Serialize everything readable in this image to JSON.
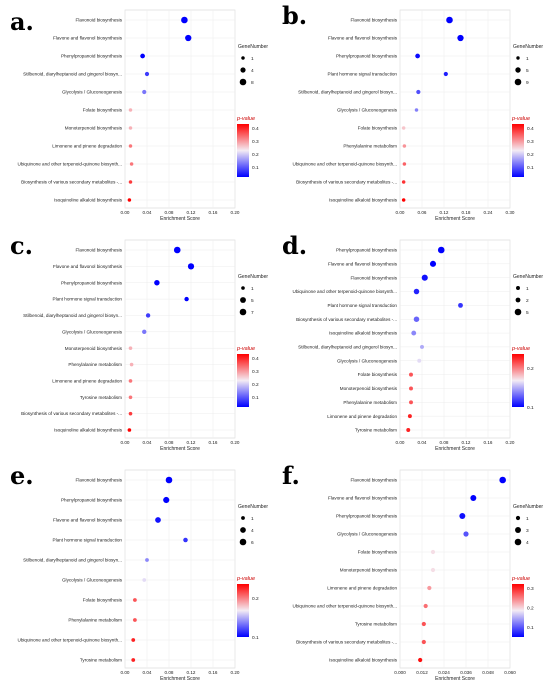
{
  "chart_data": [
    {
      "type": "scatter",
      "panel_label": "a.",
      "categories": [
        "Flavonoid biosynthesis",
        "Flavone and flavonol biosynthesis",
        "Phenylpropanoid biosynthesis",
        "Stilbenoid, diarylheptanoid and gingerol biosyn...",
        "Glycolysis / Gluconeogenesis",
        "Folate biosynthesis",
        "Monoterpenoid biosynthesis",
        "Limonene and pinene degradation",
        "Ubiquinone and other terpenoid-quinone biosynth...",
        "Biosynthesis of various secondary metabolites -...",
        "Isoquinoline alkaloid biosynthesis"
      ],
      "enrichment": [
        0.108,
        0.115,
        0.032,
        0.04,
        0.035,
        0.01,
        0.01,
        0.01,
        0.012,
        0.01,
        0.008
      ],
      "gene_number": [
        8,
        7,
        3,
        2,
        2,
        1,
        1,
        1,
        1,
        1,
        1
      ],
      "p_value": [
        0.01,
        0.02,
        0.05,
        0.1,
        0.15,
        0.3,
        0.3,
        0.35,
        0.35,
        0.4,
        0.45
      ],
      "xticks": [
        "0.00",
        "0.04",
        "0.08",
        "0.12",
        "0.16",
        "0.20"
      ],
      "xlim": [
        0,
        0.2
      ],
      "xlabel": "Enrichment Score",
      "size_legend_title": "GeneNumber",
      "size_legend": [
        "1",
        "4",
        "8"
      ],
      "color_legend_title": "p-value",
      "color_ticks": [
        "0.4",
        "0.3",
        "0.2",
        "0.1"
      ],
      "color_range": [
        0.05,
        0.45
      ]
    },
    {
      "type": "scatter",
      "panel_label": "b.",
      "categories": [
        "Flavonoid biosynthesis",
        "Flavone and flavonol biosynthesis",
        "Phenylpropanoid biosynthesis",
        "Plant hormone signal transduction",
        "Stilbenoid, diarylheptanoid and gingerol biosyn...",
        "Glycolysis / Gluconeogenesis",
        "Folate biosynthesis",
        "Phenylalanine metabolism",
        "Ubiquinone and other terpenoid-quinone biosynth...",
        "Biosynthesis of various secondary metabolites -...",
        "Isoquinoline alkaloid biosynthesis"
      ],
      "enrichment": [
        0.135,
        0.165,
        0.048,
        0.125,
        0.05,
        0.045,
        0.01,
        0.012,
        0.012,
        0.01,
        0.01
      ],
      "gene_number": [
        8,
        7,
        3,
        2,
        2,
        1,
        1,
        1,
        1,
        1,
        1
      ],
      "p_value": [
        0.01,
        0.02,
        0.03,
        0.05,
        0.1,
        0.15,
        0.3,
        0.35,
        0.4,
        0.45,
        0.5
      ],
      "xticks": [
        "0.00",
        "0.06",
        "0.12",
        "0.18",
        "0.24",
        "0.30"
      ],
      "xlim": [
        0,
        0.3
      ],
      "xlabel": "Enrichment Score",
      "size_legend_title": "GeneNumber",
      "size_legend": [
        "1",
        "5",
        "9"
      ],
      "color_legend_title": "p-value",
      "color_ticks": [
        "0.4",
        "0.3",
        "0.2",
        "0.1"
      ],
      "color_range": [
        0.02,
        0.5
      ]
    },
    {
      "type": "scatter",
      "panel_label": "c.",
      "categories": [
        "Flavonoid biosynthesis",
        "Flavone and flavonol biosynthesis",
        "Phenylpropanoid biosynthesis",
        "Plant hormone signal transduction",
        "Stilbenoid, diarylheptanoid and gingerol biosyn...",
        "Glycolysis / Gluconeogenesis",
        "Monoterpenoid biosynthesis",
        "Phenylalanine metabolism",
        "Limonene and pinene degradation",
        "Tyrosine metabolism",
        "Biosynthesis of various secondary metabolites -...",
        "Isoquinoline alkaloid biosynthesis"
      ],
      "enrichment": [
        0.095,
        0.12,
        0.058,
        0.112,
        0.042,
        0.035,
        0.01,
        0.012,
        0.01,
        0.01,
        0.01,
        0.008
      ],
      "gene_number": [
        7,
        6,
        4,
        2,
        2,
        2,
        1,
        1,
        1,
        1,
        1,
        1
      ],
      "p_value": [
        0.01,
        0.02,
        0.03,
        0.05,
        0.1,
        0.15,
        0.3,
        0.3,
        0.35,
        0.35,
        0.4,
        0.45
      ],
      "xticks": [
        "0.00",
        "0.04",
        "0.08",
        "0.12",
        "0.16",
        "0.20"
      ],
      "xlim": [
        0,
        0.2
      ],
      "xlabel": "Enrichment Score",
      "size_legend_title": "GeneNumber",
      "size_legend": [
        "1",
        "5",
        "7"
      ],
      "color_legend_title": "p-value",
      "color_ticks": [
        "0.4",
        "0.3",
        "0.2",
        "0.1"
      ],
      "color_range": [
        0.05,
        0.45
      ]
    },
    {
      "type": "scatter",
      "panel_label": "d.",
      "categories": [
        "Phenylpropanoid biosynthesis",
        "Flavone and flavonol biosynthesis",
        "Flavonoid biosynthesis",
        "Ubiquinone and other terpenoid-quinone biosynth...",
        "Plant hormone signal transduction",
        "Biosynthesis of various secondary metabolites -...",
        "Isoquinoline alkaloid biosynthesis",
        "Stilbenoid, diarylheptanoid and gingerol biosyn...",
        "Glycolysis / Gluconeogenesis",
        "Folate biosynthesis",
        "Monoterpenoid biosynthesis",
        "Phenylalanine metabolism",
        "Limonene and pinene degradation",
        "Tyrosine metabolism"
      ],
      "enrichment": [
        0.075,
        0.06,
        0.045,
        0.03,
        0.11,
        0.03,
        0.025,
        0.04,
        0.035,
        0.02,
        0.02,
        0.02,
        0.018,
        0.015
      ],
      "gene_number": [
        5,
        4,
        4,
        3,
        2,
        3,
        2,
        1,
        1,
        1,
        1,
        1,
        1,
        1
      ],
      "p_value": [
        0.01,
        0.02,
        0.03,
        0.04,
        0.05,
        0.08,
        0.1,
        0.12,
        0.15,
        0.25,
        0.25,
        0.25,
        0.28,
        0.28
      ],
      "xticks": [
        "0.00",
        "0.04",
        "0.08",
        "0.12",
        "0.16",
        "0.20"
      ],
      "xlim": [
        0,
        0.2
      ],
      "xlabel": "Enrichment Score",
      "size_legend_title": "GeneNumber",
      "size_legend": [
        "1",
        "2",
        "5"
      ],
      "color_legend_title": "p-value",
      "color_ticks": [
        "0.2",
        "0.1"
      ],
      "color_range": [
        0.02,
        0.3
      ]
    },
    {
      "type": "scatter",
      "panel_label": "e.",
      "categories": [
        "Flavonoid biosynthesis",
        "Phenylpropanoid biosynthesis",
        "Flavone and flavonol biosynthesis",
        "Plant hormone signal transduction",
        "Stilbenoid, diarylheptanoid and gingerol biosyn...",
        "Glycolysis / Gluconeogenesis",
        "Folate biosynthesis",
        "Phenylalanine metabolism",
        "Ubiquinone and other terpenoid-quinone biosynth...",
        "Tyrosine metabolism"
      ],
      "enrichment": [
        0.08,
        0.075,
        0.06,
        0.11,
        0.04,
        0.035,
        0.018,
        0.018,
        0.015,
        0.015
      ],
      "gene_number": [
        6,
        5,
        4,
        2,
        1,
        1,
        1,
        1,
        1,
        1
      ],
      "p_value": [
        0.01,
        0.02,
        0.03,
        0.05,
        0.1,
        0.15,
        0.25,
        0.25,
        0.28,
        0.28
      ],
      "xticks": [
        "0.00",
        "0.04",
        "0.08",
        "0.12",
        "0.16",
        "0.20"
      ],
      "xlim": [
        0,
        0.2
      ],
      "xlabel": "Enrichment Score",
      "size_legend_title": "GeneNumber",
      "size_legend": [
        "1",
        "4",
        "6"
      ],
      "color_legend_title": "p-value",
      "color_ticks": [
        "0.2",
        "0.1"
      ],
      "color_range": [
        0.02,
        0.3
      ]
    },
    {
      "type": "scatter",
      "panel_label": "f.",
      "categories": [
        "Flavonoid biosynthesis",
        "Flavone and flavonol biosynthesis",
        "Phenylpropanoid biosynthesis",
        "Glycolysis / Gluconeogenesis",
        "Folate biosynthesis",
        "Monoterpenoid biosynthesis",
        "Limonene and pinene degradation",
        "Ubiquinone and other terpenoid-quinone biosynth...",
        "Tyrosine metabolism",
        "Biosynthesis of various secondary metabolites -...",
        "Isoquinoline alkaloid biosynthesis"
      ],
      "enrichment": [
        0.056,
        0.04,
        0.034,
        0.036,
        0.018,
        0.018,
        0.016,
        0.014,
        0.013,
        0.013,
        0.011
      ],
      "gene_number": [
        4,
        3,
        3,
        2,
        1,
        1,
        1,
        1,
        1,
        1,
        1
      ],
      "p_value": [
        0.01,
        0.02,
        0.03,
        0.08,
        0.2,
        0.2,
        0.25,
        0.28,
        0.3,
        0.3,
        0.35
      ],
      "xticks": [
        "0.000",
        "0.012",
        "0.024",
        "0.036",
        "0.048",
        "0.060"
      ],
      "xlim": [
        0,
        0.06
      ],
      "xlabel": "Enrichment Score",
      "size_legend_title": "GeneNumber",
      "size_legend": [
        "1",
        "3",
        "4"
      ],
      "color_legend_title": "p-value",
      "color_ticks": [
        "0.3",
        "0.2",
        "0.1"
      ],
      "color_range": [
        0.02,
        0.36
      ]
    }
  ]
}
